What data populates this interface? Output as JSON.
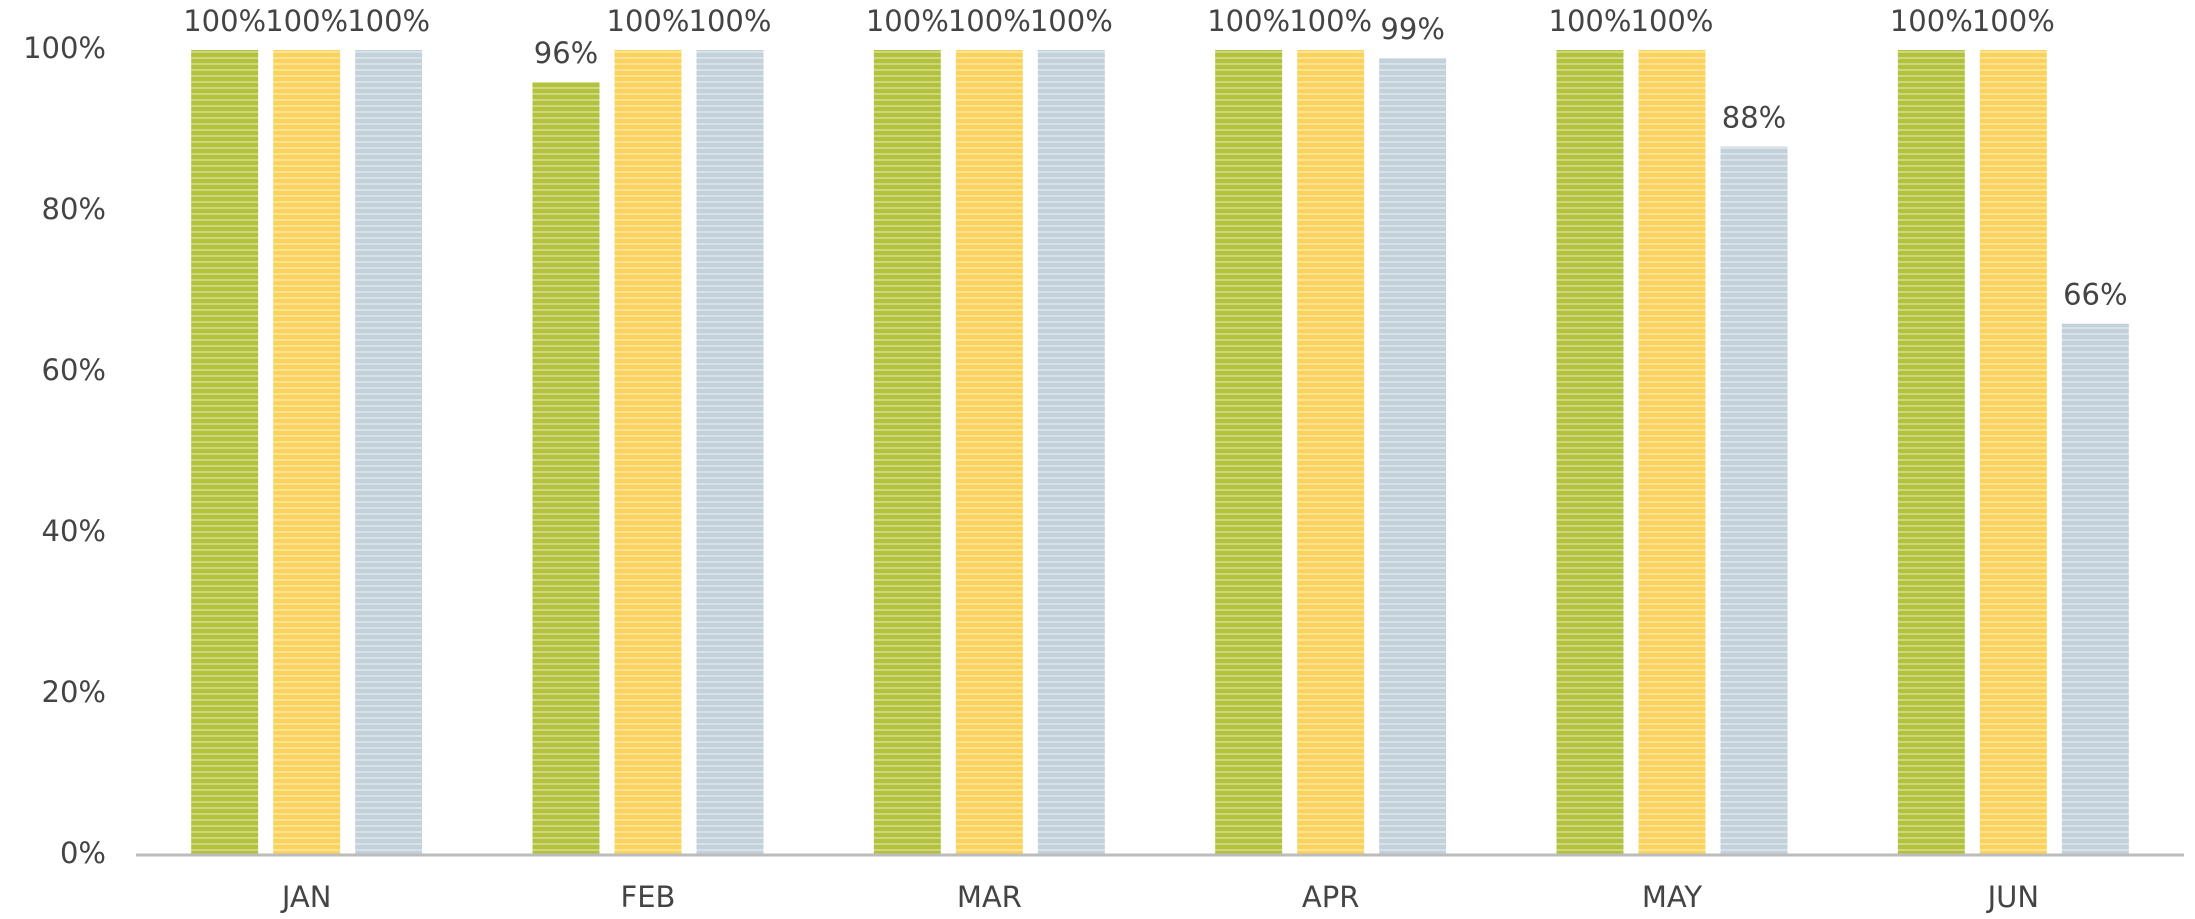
{
  "chart_data": {
    "type": "bar",
    "categories": [
      "JAN",
      "FEB",
      "MAR",
      "APR",
      "MAY",
      "JUN"
    ],
    "series": [
      {
        "color": "#b3c23c",
        "values": [
          100,
          96,
          100,
          100,
          100,
          100
        ],
        "value_labels": [
          "100%",
          "96%",
          "100%",
          "100%",
          "100%",
          "100%"
        ]
      },
      {
        "color": "#fbd35c",
        "values": [
          100,
          100,
          100,
          100,
          100,
          100
        ],
        "value_labels": [
          "100%",
          "100%",
          "100%",
          "100%",
          "100%",
          "100%"
        ]
      },
      {
        "color": "#c3d1da",
        "values": [
          100,
          100,
          100,
          99,
          88,
          66
        ],
        "value_labels": [
          "100%",
          "100%",
          "100%",
          "99%",
          "88%",
          "66%"
        ]
      }
    ],
    "ylim": [
      0,
      100
    ],
    "yticks": [
      {
        "value": 0,
        "label": "0%"
      },
      {
        "value": 20,
        "label": "20%"
      },
      {
        "value": 40,
        "label": "40%"
      },
      {
        "value": 60,
        "label": "60%"
      },
      {
        "value": 80,
        "label": "80%"
      },
      {
        "value": 100,
        "label": "100%"
      }
    ],
    "grid": false
  }
}
